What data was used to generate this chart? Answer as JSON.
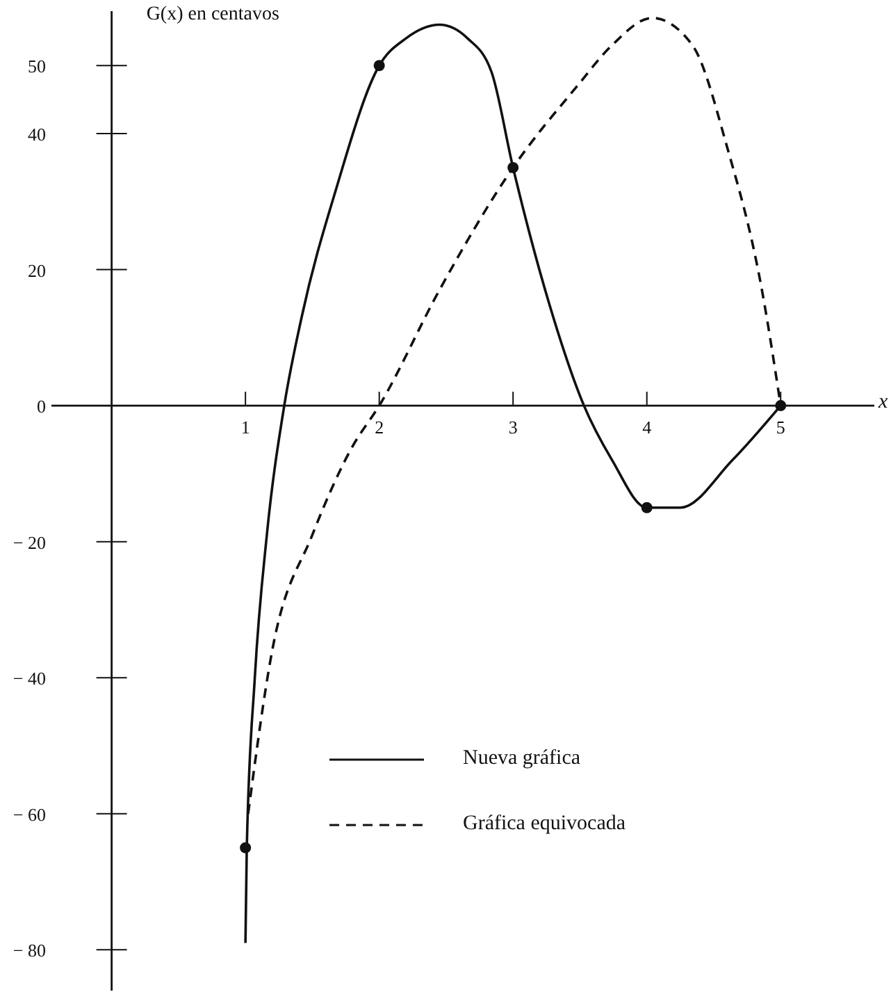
{
  "chart_data": {
    "type": "line",
    "ylabel": "G(x) en centavos",
    "xlabel": "x",
    "xlim": [
      -0.45,
      5.7
    ],
    "ylim": [
      -86,
      58
    ],
    "xticks": [
      1,
      2,
      3,
      4,
      5
    ],
    "yticks": [
      -80,
      -60,
      -40,
      -20,
      0,
      20,
      40,
      50
    ],
    "grid": false,
    "legend": "bottom",
    "series": [
      {
        "name": "Nueva gráfica",
        "line_style": "solid",
        "color": "#111111",
        "x": [
          1,
          1.01,
          1.07,
          1.16,
          1.29,
          1.42,
          1.68,
          2,
          2.2,
          2.45,
          2.66,
          2.84,
          3,
          3.27,
          3.53,
          3.74,
          4,
          4.25,
          4.64,
          5
        ],
        "values": [
          -79,
          -65,
          -40,
          -19,
          0,
          13,
          32,
          50,
          54,
          56,
          54,
          49,
          35,
          15,
          0,
          -8,
          -15,
          -15,
          -8,
          0
        ]
      },
      {
        "name": "Gráfica equivocada",
        "line_style": "dashed",
        "color": "#111111",
        "x": [
          1.02,
          1.2,
          1.5,
          1.8,
          2,
          2.45,
          3,
          3.48,
          3.74,
          4.04,
          4.34,
          4.6,
          4.86,
          5
        ],
        "values": [
          -60,
          -36,
          -19,
          -6,
          0,
          17,
          35,
          47,
          53,
          57,
          53,
          38,
          17,
          0
        ]
      },
      {
        "type": "scatter",
        "marker": "circle",
        "color": "#111111",
        "x": [
          1,
          2,
          3,
          4,
          5
        ],
        "values": [
          -65,
          50,
          35,
          -15,
          0
        ]
      }
    ]
  }
}
